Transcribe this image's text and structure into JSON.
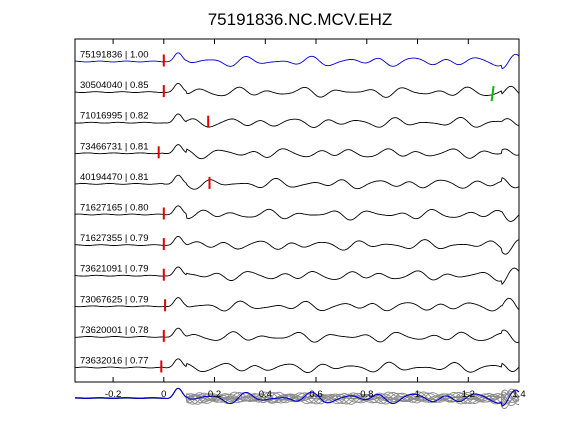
{
  "chart_data": {
    "type": "line",
    "title": "75191836.NC.MCV.EHZ",
    "xlim": [
      -0.35,
      1.4
    ],
    "xticks": [
      "-0.2",
      "0",
      "0.2",
      "0.4",
      "0.6",
      "0.8",
      "1",
      "1.2",
      "1.4"
    ],
    "xtick_values": [
      -0.2,
      0,
      0.2,
      0.4,
      0.6,
      0.8,
      1.0,
      1.2,
      1.4
    ],
    "grid": false,
    "colors": {
      "reference": "#0000cc",
      "trace": "#000000",
      "stack": "#8a8a8a",
      "pick_marker": "#e00000",
      "secondary_marker": "#00bb00"
    },
    "traces": [
      {
        "event": "75191836",
        "cc": "1.00",
        "label": "75191836 | 1.00",
        "pick": 0.0,
        "reference": true
      },
      {
        "event": "30504040",
        "cc": "0.85",
        "label": "30504040 | 0.85",
        "pick": 0.0,
        "secondary_pick": 1.3
      },
      {
        "event": "71016995",
        "cc": "0.82",
        "label": "71016995 | 0.82",
        "pick": 0.175
      },
      {
        "event": "73466731",
        "cc": "0.81",
        "label": "73466731 | 0.81",
        "pick": -0.02
      },
      {
        "event": "40194470",
        "cc": "0.81",
        "label": "40194470 | 0.81",
        "pick": 0.18
      },
      {
        "event": "71627165",
        "cc": "0.80",
        "label": "71627165 | 0.80",
        "pick": 0.0
      },
      {
        "event": "71627355",
        "cc": "0.79",
        "label": "71627355 | 0.79",
        "pick": 0.0
      },
      {
        "event": "73621091",
        "cc": "0.79",
        "label": "73621091 | 0.79",
        "pick": 0.0
      },
      {
        "event": "73067625",
        "cc": "0.79",
        "label": "73067625 | 0.79",
        "pick": 0.005
      },
      {
        "event": "73620001",
        "cc": "0.78",
        "label": "73620001 | 0.78",
        "pick": 0.0
      },
      {
        "event": "73632016",
        "cc": "0.77",
        "label": "73632016 | 0.77",
        "pick": -0.01
      }
    ],
    "stack_row": {
      "traces_overlaid": 11,
      "reference_color": "#0000cc"
    }
  }
}
